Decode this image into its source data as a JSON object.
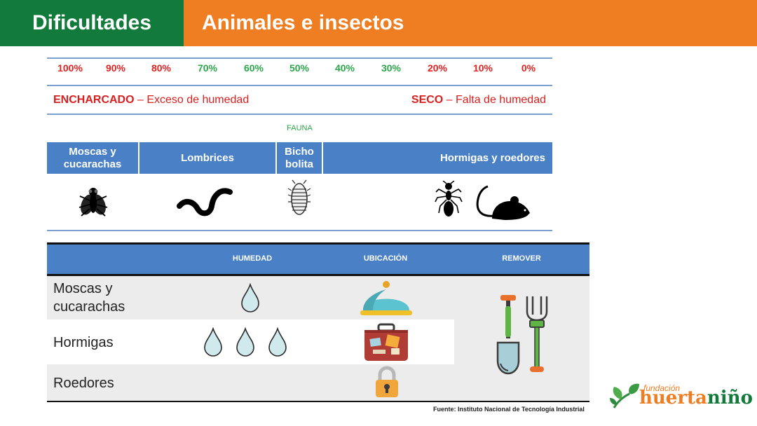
{
  "header": {
    "section": "Dificultades",
    "title": "Animales e insectos"
  },
  "scale": {
    "percentages": [
      "100%",
      "90%",
      "80%",
      "70%",
      "60%",
      "50%",
      "40%",
      "30%",
      "20%",
      "10%",
      "0%"
    ],
    "left_bold": "ENCHARCADO",
    "left_text": " – Exceso de humedad",
    "right_bold": "SECO",
    "right_text": " – Falta de humedad"
  },
  "fauna": {
    "label": "FAUNA",
    "groups": [
      "Moscas y cucarachas",
      "Lombrices",
      "Bicho bolita",
      "Hormigas y roedores"
    ],
    "icons": [
      "fly-icon",
      "worm-icon",
      "pillbug-icon",
      "ant-icon",
      "mouse-icon"
    ]
  },
  "table": {
    "headers": [
      "HUMEDAD",
      "UBICACIÓN",
      "REMOVER"
    ],
    "rows": [
      {
        "name": "Moscas y cucarachas",
        "drops": 1,
        "location_icon": "cloche-icon"
      },
      {
        "name": "Hormigas",
        "drops": 3,
        "location_icon": "suitcase-icon"
      },
      {
        "name": "Roedores",
        "drops": 0,
        "location_icon": "lock-icon"
      }
    ],
    "remove_icon": "garden-tools-icon"
  },
  "source": "Fuente: Instituto Nacional de Tecnología Industrial",
  "logo": {
    "small": "fundación",
    "part1": "huerta",
    "part2": "niño"
  },
  "colors": {
    "green": "#127a3a",
    "orange": "#ef7d22",
    "blue": "#4a80c5",
    "red": "#e32222",
    "scale_green": "#2ca64a",
    "row_gray": "#ececec"
  }
}
